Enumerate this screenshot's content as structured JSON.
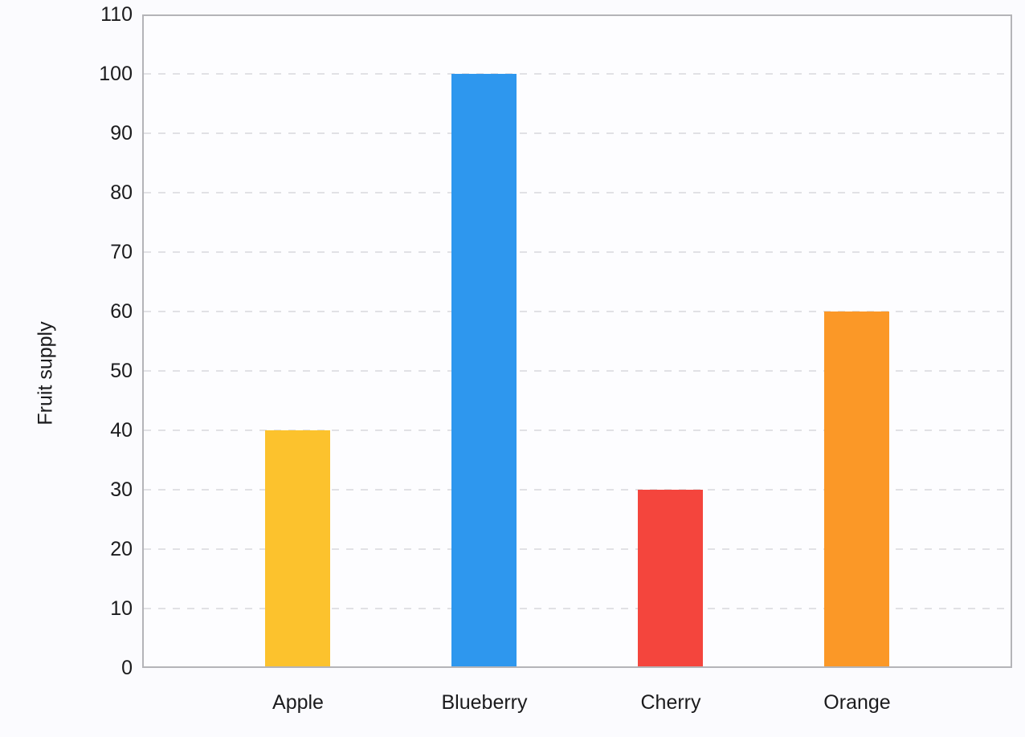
{
  "page": {
    "background_color": "#fbfbfe"
  },
  "chart_data": {
    "type": "bar",
    "title": "",
    "categories": [
      "Apple",
      "Blueberry",
      "Cherry",
      "Orange"
    ],
    "values": [
      40,
      100,
      30,
      60
    ],
    "bar_colors": [
      "#fcc22d",
      "#2e97ee",
      "#f4453d",
      "#fb9827"
    ],
    "xlabel": "",
    "ylabel": "Fruit supply",
    "ylim": [
      0,
      110
    ],
    "yticks": [
      0,
      10,
      20,
      30,
      40,
      50,
      60,
      70,
      80,
      90,
      100,
      110
    ],
    "grid": "horizontal dashed",
    "grid_color": "#e1e1e5",
    "plot_border_color": "#b4b4b8",
    "plot_background": "#fdfdff",
    "text_color": "#1b1b1d",
    "legend": "none"
  }
}
